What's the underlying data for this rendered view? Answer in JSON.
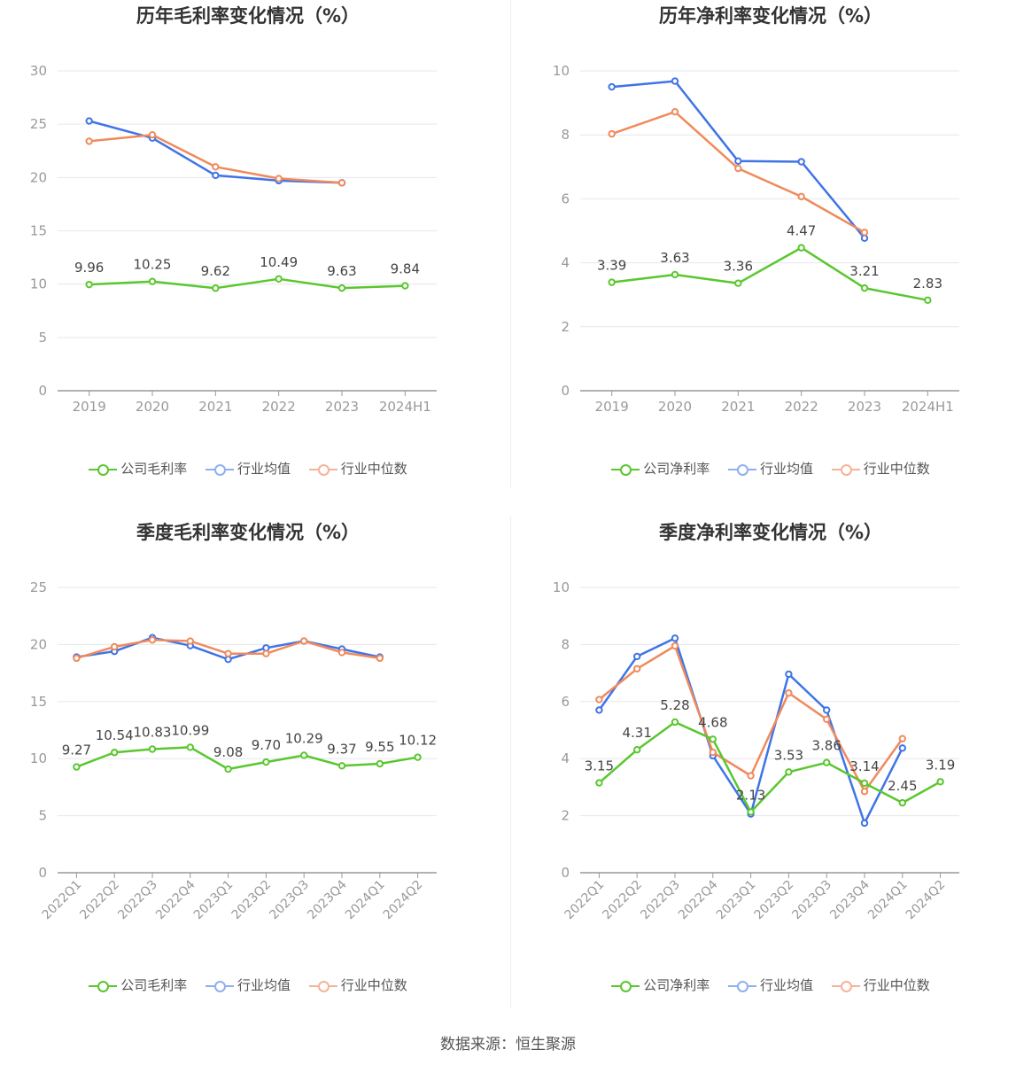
{
  "source": "数据来源：恒生聚源",
  "colors": {
    "company": "#5ac72e",
    "avg": "#3f74e6",
    "median": "#f08a5d",
    "grid": "#e6e6ef",
    "axis": "#999999",
    "tick": "#999999"
  },
  "legend": {
    "gross": [
      "公司毛利率",
      "行业均值",
      "行业中位数"
    ],
    "net": [
      "公司净利率",
      "行业均值",
      "行业中位数"
    ]
  },
  "chart_data": [
    {
      "type": "line",
      "title": "历年毛利率变化情况（%）",
      "categories": [
        "2019",
        "2020",
        "2021",
        "2022",
        "2023",
        "2024H1"
      ],
      "ylim": [
        0,
        30
      ],
      "yticks": [
        0,
        5,
        10,
        15,
        20,
        25,
        30
      ],
      "rotate_labels": false,
      "series": [
        {
          "name": "公司毛利率",
          "values": [
            9.96,
            10.25,
            9.62,
            10.49,
            9.63,
            9.84
          ],
          "labels": [
            "9.96",
            "10.25",
            "9.62",
            "10.49",
            "9.63",
            "9.84"
          ]
        },
        {
          "name": "行业均值",
          "values": [
            25.3,
            23.7,
            20.2,
            19.7,
            19.5,
            null
          ]
        },
        {
          "name": "行业中位数",
          "values": [
            23.4,
            24.0,
            21.0,
            19.9,
            19.5,
            null
          ]
        }
      ]
    },
    {
      "type": "line",
      "title": "历年净利率变化情况（%）",
      "categories": [
        "2019",
        "2020",
        "2021",
        "2022",
        "2023",
        "2024H1"
      ],
      "ylim": [
        0,
        10
      ],
      "yticks": [
        0,
        2,
        4,
        6,
        8,
        10
      ],
      "rotate_labels": false,
      "series": [
        {
          "name": "公司净利率",
          "values": [
            3.39,
            3.63,
            3.36,
            4.47,
            3.21,
            2.83
          ],
          "labels": [
            "3.39",
            "3.63",
            "3.36",
            "4.47",
            "3.21",
            "2.83"
          ]
        },
        {
          "name": "行业均值",
          "values": [
            9.5,
            9.68,
            7.18,
            7.16,
            4.77,
            null
          ]
        },
        {
          "name": "行业中位数",
          "values": [
            8.03,
            8.72,
            6.95,
            6.07,
            4.95,
            null
          ]
        }
      ]
    },
    {
      "type": "line",
      "title": "季度毛利率变化情况（%）",
      "categories": [
        "2022Q1",
        "2022Q2",
        "2022Q3",
        "2022Q4",
        "2023Q1",
        "2023Q2",
        "2023Q3",
        "2023Q4",
        "2024Q1",
        "2024Q2"
      ],
      "ylim": [
        0,
        25
      ],
      "yticks": [
        0,
        5,
        10,
        15,
        20,
        25
      ],
      "rotate_labels": true,
      "series": [
        {
          "name": "公司毛利率",
          "values": [
            9.27,
            10.54,
            10.83,
            10.99,
            9.08,
            9.7,
            10.29,
            9.37,
            9.55,
            10.12
          ],
          "labels": [
            "9.27",
            "10.54",
            "10.83",
            "10.99",
            "9.08",
            "9.70",
            "10.29",
            "9.37",
            "9.55",
            "10.12"
          ]
        },
        {
          "name": "行业均值",
          "values": [
            18.9,
            19.4,
            20.6,
            19.9,
            18.7,
            19.7,
            20.3,
            19.6,
            18.9,
            null
          ]
        },
        {
          "name": "行业中位数",
          "values": [
            18.8,
            19.8,
            20.4,
            20.3,
            19.2,
            19.2,
            20.3,
            19.3,
            18.8,
            null
          ]
        }
      ]
    },
    {
      "type": "line",
      "title": "季度净利率变化情况（%）",
      "categories": [
        "2022Q1",
        "2022Q2",
        "2022Q3",
        "2022Q4",
        "2023Q1",
        "2023Q2",
        "2023Q3",
        "2023Q4",
        "2024Q1",
        "2024Q2"
      ],
      "ylim": [
        0,
        10
      ],
      "yticks": [
        0,
        2,
        4,
        6,
        8,
        10
      ],
      "rotate_labels": true,
      "series": [
        {
          "name": "公司净利率",
          "values": [
            3.15,
            4.31,
            5.28,
            4.68,
            2.13,
            3.53,
            3.86,
            3.14,
            2.45,
            3.19
          ],
          "labels": [
            "3.15",
            "4.31",
            "5.28",
            "4.68",
            "2.13",
            "3.53",
            "3.86",
            "3.14",
            "2.45",
            "3.19"
          ]
        },
        {
          "name": "行业均值",
          "values": [
            5.7,
            7.58,
            8.22,
            4.1,
            2.06,
            6.96,
            5.7,
            1.74,
            4.37,
            null
          ]
        },
        {
          "name": "行业中位数",
          "values": [
            6.07,
            7.15,
            7.95,
            4.22,
            3.4,
            6.3,
            5.38,
            2.85,
            4.7,
            null
          ]
        }
      ]
    }
  ]
}
